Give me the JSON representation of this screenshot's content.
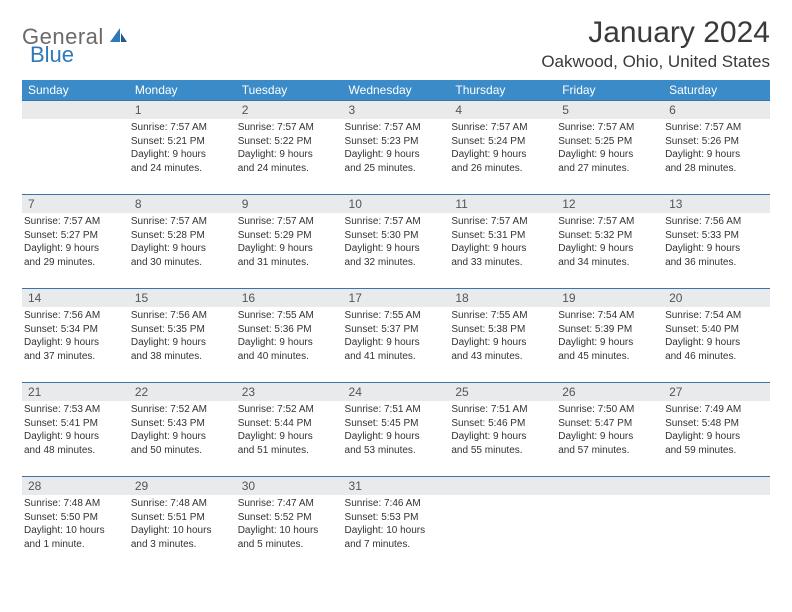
{
  "brand": {
    "name": "General",
    "accent": "Blue"
  },
  "title": "January 2024",
  "location": "Oakwood, Ohio, United States",
  "colors": {
    "header_bg": "#3b8bc9",
    "header_text": "#ffffff",
    "row_border": "#3b74a8",
    "daynum_bg": "#e8eaec",
    "logo_gray": "#6a6a6a",
    "logo_blue": "#2f79b9"
  },
  "typography": {
    "title_fontsize": 30,
    "location_fontsize": 17,
    "dayheader_fontsize": 12,
    "body_fontsize": 10
  },
  "weekdays": [
    "Sunday",
    "Monday",
    "Tuesday",
    "Wednesday",
    "Thursday",
    "Friday",
    "Saturday"
  ],
  "weeks": [
    [
      null,
      {
        "n": "1",
        "sr": "Sunrise: 7:57 AM",
        "ss": "Sunset: 5:21 PM",
        "d1": "Daylight: 9 hours",
        "d2": "and 24 minutes."
      },
      {
        "n": "2",
        "sr": "Sunrise: 7:57 AM",
        "ss": "Sunset: 5:22 PM",
        "d1": "Daylight: 9 hours",
        "d2": "and 24 minutes."
      },
      {
        "n": "3",
        "sr": "Sunrise: 7:57 AM",
        "ss": "Sunset: 5:23 PM",
        "d1": "Daylight: 9 hours",
        "d2": "and 25 minutes."
      },
      {
        "n": "4",
        "sr": "Sunrise: 7:57 AM",
        "ss": "Sunset: 5:24 PM",
        "d1": "Daylight: 9 hours",
        "d2": "and 26 minutes."
      },
      {
        "n": "5",
        "sr": "Sunrise: 7:57 AM",
        "ss": "Sunset: 5:25 PM",
        "d1": "Daylight: 9 hours",
        "d2": "and 27 minutes."
      },
      {
        "n": "6",
        "sr": "Sunrise: 7:57 AM",
        "ss": "Sunset: 5:26 PM",
        "d1": "Daylight: 9 hours",
        "d2": "and 28 minutes."
      }
    ],
    [
      {
        "n": "7",
        "sr": "Sunrise: 7:57 AM",
        "ss": "Sunset: 5:27 PM",
        "d1": "Daylight: 9 hours",
        "d2": "and 29 minutes."
      },
      {
        "n": "8",
        "sr": "Sunrise: 7:57 AM",
        "ss": "Sunset: 5:28 PM",
        "d1": "Daylight: 9 hours",
        "d2": "and 30 minutes."
      },
      {
        "n": "9",
        "sr": "Sunrise: 7:57 AM",
        "ss": "Sunset: 5:29 PM",
        "d1": "Daylight: 9 hours",
        "d2": "and 31 minutes."
      },
      {
        "n": "10",
        "sr": "Sunrise: 7:57 AM",
        "ss": "Sunset: 5:30 PM",
        "d1": "Daylight: 9 hours",
        "d2": "and 32 minutes."
      },
      {
        "n": "11",
        "sr": "Sunrise: 7:57 AM",
        "ss": "Sunset: 5:31 PM",
        "d1": "Daylight: 9 hours",
        "d2": "and 33 minutes."
      },
      {
        "n": "12",
        "sr": "Sunrise: 7:57 AM",
        "ss": "Sunset: 5:32 PM",
        "d1": "Daylight: 9 hours",
        "d2": "and 34 minutes."
      },
      {
        "n": "13",
        "sr": "Sunrise: 7:56 AM",
        "ss": "Sunset: 5:33 PM",
        "d1": "Daylight: 9 hours",
        "d2": "and 36 minutes."
      }
    ],
    [
      {
        "n": "14",
        "sr": "Sunrise: 7:56 AM",
        "ss": "Sunset: 5:34 PM",
        "d1": "Daylight: 9 hours",
        "d2": "and 37 minutes."
      },
      {
        "n": "15",
        "sr": "Sunrise: 7:56 AM",
        "ss": "Sunset: 5:35 PM",
        "d1": "Daylight: 9 hours",
        "d2": "and 38 minutes."
      },
      {
        "n": "16",
        "sr": "Sunrise: 7:55 AM",
        "ss": "Sunset: 5:36 PM",
        "d1": "Daylight: 9 hours",
        "d2": "and 40 minutes."
      },
      {
        "n": "17",
        "sr": "Sunrise: 7:55 AM",
        "ss": "Sunset: 5:37 PM",
        "d1": "Daylight: 9 hours",
        "d2": "and 41 minutes."
      },
      {
        "n": "18",
        "sr": "Sunrise: 7:55 AM",
        "ss": "Sunset: 5:38 PM",
        "d1": "Daylight: 9 hours",
        "d2": "and 43 minutes."
      },
      {
        "n": "19",
        "sr": "Sunrise: 7:54 AM",
        "ss": "Sunset: 5:39 PM",
        "d1": "Daylight: 9 hours",
        "d2": "and 45 minutes."
      },
      {
        "n": "20",
        "sr": "Sunrise: 7:54 AM",
        "ss": "Sunset: 5:40 PM",
        "d1": "Daylight: 9 hours",
        "d2": "and 46 minutes."
      }
    ],
    [
      {
        "n": "21",
        "sr": "Sunrise: 7:53 AM",
        "ss": "Sunset: 5:41 PM",
        "d1": "Daylight: 9 hours",
        "d2": "and 48 minutes."
      },
      {
        "n": "22",
        "sr": "Sunrise: 7:52 AM",
        "ss": "Sunset: 5:43 PM",
        "d1": "Daylight: 9 hours",
        "d2": "and 50 minutes."
      },
      {
        "n": "23",
        "sr": "Sunrise: 7:52 AM",
        "ss": "Sunset: 5:44 PM",
        "d1": "Daylight: 9 hours",
        "d2": "and 51 minutes."
      },
      {
        "n": "24",
        "sr": "Sunrise: 7:51 AM",
        "ss": "Sunset: 5:45 PM",
        "d1": "Daylight: 9 hours",
        "d2": "and 53 minutes."
      },
      {
        "n": "25",
        "sr": "Sunrise: 7:51 AM",
        "ss": "Sunset: 5:46 PM",
        "d1": "Daylight: 9 hours",
        "d2": "and 55 minutes."
      },
      {
        "n": "26",
        "sr": "Sunrise: 7:50 AM",
        "ss": "Sunset: 5:47 PM",
        "d1": "Daylight: 9 hours",
        "d2": "and 57 minutes."
      },
      {
        "n": "27",
        "sr": "Sunrise: 7:49 AM",
        "ss": "Sunset: 5:48 PM",
        "d1": "Daylight: 9 hours",
        "d2": "and 59 minutes."
      }
    ],
    [
      {
        "n": "28",
        "sr": "Sunrise: 7:48 AM",
        "ss": "Sunset: 5:50 PM",
        "d1": "Daylight: 10 hours",
        "d2": "and 1 minute."
      },
      {
        "n": "29",
        "sr": "Sunrise: 7:48 AM",
        "ss": "Sunset: 5:51 PM",
        "d1": "Daylight: 10 hours",
        "d2": "and 3 minutes."
      },
      {
        "n": "30",
        "sr": "Sunrise: 7:47 AM",
        "ss": "Sunset: 5:52 PM",
        "d1": "Daylight: 10 hours",
        "d2": "and 5 minutes."
      },
      {
        "n": "31",
        "sr": "Sunrise: 7:46 AM",
        "ss": "Sunset: 5:53 PM",
        "d1": "Daylight: 10 hours",
        "d2": "and 7 minutes."
      },
      null,
      null,
      null
    ]
  ]
}
